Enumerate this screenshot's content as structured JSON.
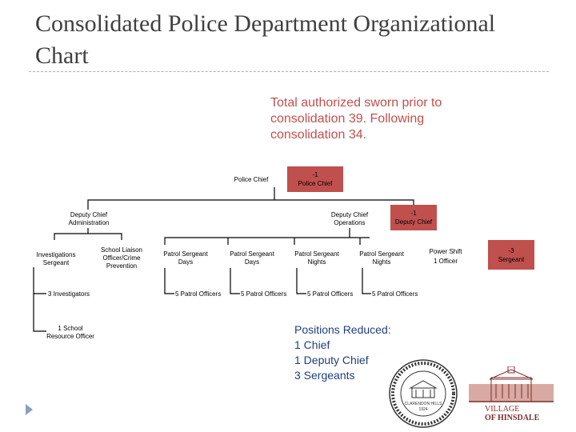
{
  "title": "Consolidated Police Department Organizational Chart",
  "note": "Total authorized sworn prior to consolidation 39.  Following consolidation 34.",
  "nodes": {
    "police_chief": "Police Chief",
    "removed_chief_count": "-1",
    "removed_chief_label": "Police Chief",
    "dc_admin": "Deputy Chief Administration",
    "dc_ops": "Deputy Chief Operations",
    "removed_dc_count": "-1",
    "removed_dc_label": "Deputy Chief",
    "inv_sgt": "Investigations Sergeant",
    "school_liaison": "School Liaison Officer/Crime Prevention",
    "investigators": "3 Investigators",
    "school_resource": "1 School Resource Officer",
    "ps_days_1": "Patrol Sergeant Days",
    "ps_days_2": "Patrol Sergeant Days",
    "ps_nights_1": "Patrol Sergeant Nights",
    "ps_nights_2": "Patrol Sergeant Nights",
    "po_1": "5 Patrol Officers",
    "po_2": "5 Patrol Officers",
    "po_3": "5 Patrol Officers",
    "po_4": "5 Patrol Officers",
    "power_shift": "Power Shift",
    "power_officer": "1 Officer",
    "removed_sgt_count": "-3",
    "removed_sgt_label": "Sergeant"
  },
  "reduced": {
    "heading": "Positions Reduced:",
    "line1": "1 Chief",
    "line2": "1 Deputy Chief",
    "line3": "3 Sergeants"
  },
  "logos": {
    "seal_text": "CLARENDON HILLS",
    "seal_year": "1924",
    "village_line1": "VILLAGE",
    "village_line2": "OF HINSDALE"
  },
  "colors": {
    "accent_red": "#c0504d",
    "title_gray": "#404040",
    "reduced_blue": "#1f3f7a"
  }
}
